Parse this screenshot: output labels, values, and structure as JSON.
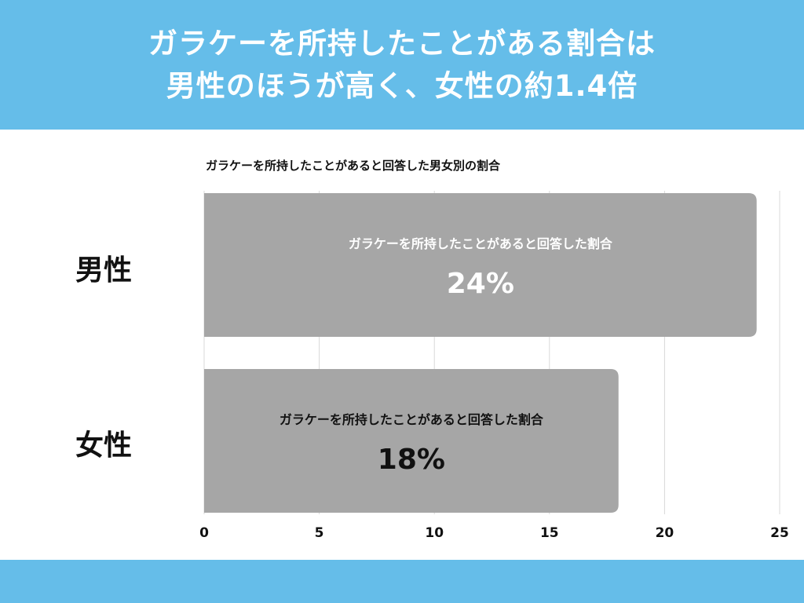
{
  "header": {
    "line1": "ガラケーを所持したことがある割合は",
    "line2": "男性のほうが高く、女性の約1.4倍"
  },
  "colors": {
    "header_bg": "#65bde9",
    "bar": "#a6a6a6",
    "grid": "#d9d9d9",
    "male_text": "#ffffff",
    "female_text": "#111111"
  },
  "chart_data": {
    "type": "bar",
    "orientation": "horizontal",
    "title": "ガラケーを所持したことがあると回答した男女別の割合",
    "categories": [
      "男性",
      "女性"
    ],
    "values": [
      24,
      18
    ],
    "bar_captions": [
      "ガラケーを所持したことがあると回答した割合",
      "ガラケーを所持したことがあると回答した割合"
    ],
    "value_labels": [
      "24%",
      "18%"
    ],
    "xlim": [
      0,
      25
    ],
    "x_ticks": [
      "0",
      "5",
      "10",
      "15",
      "20",
      "25"
    ],
    "grid": true,
    "legend": "none"
  }
}
